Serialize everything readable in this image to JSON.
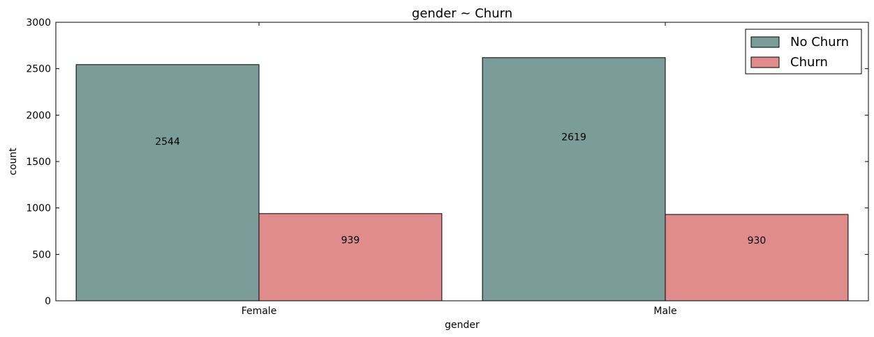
{
  "chart_data": {
    "type": "bar",
    "title": "gender ~ Churn",
    "xlabel": "gender",
    "ylabel": "count",
    "categories": [
      "Female",
      "Male"
    ],
    "series": [
      {
        "name": "No Churn",
        "values": [
          2544,
          2619
        ],
        "color": "#7b9c98"
      },
      {
        "name": "Churn",
        "values": [
          939,
          930
        ],
        "color": "#e08c8c"
      }
    ],
    "ylim": [
      0,
      3000
    ],
    "yticks": [
      0,
      500,
      1000,
      1500,
      2000,
      2500,
      3000
    ],
    "legend_position": "top-right",
    "grid": false
  }
}
